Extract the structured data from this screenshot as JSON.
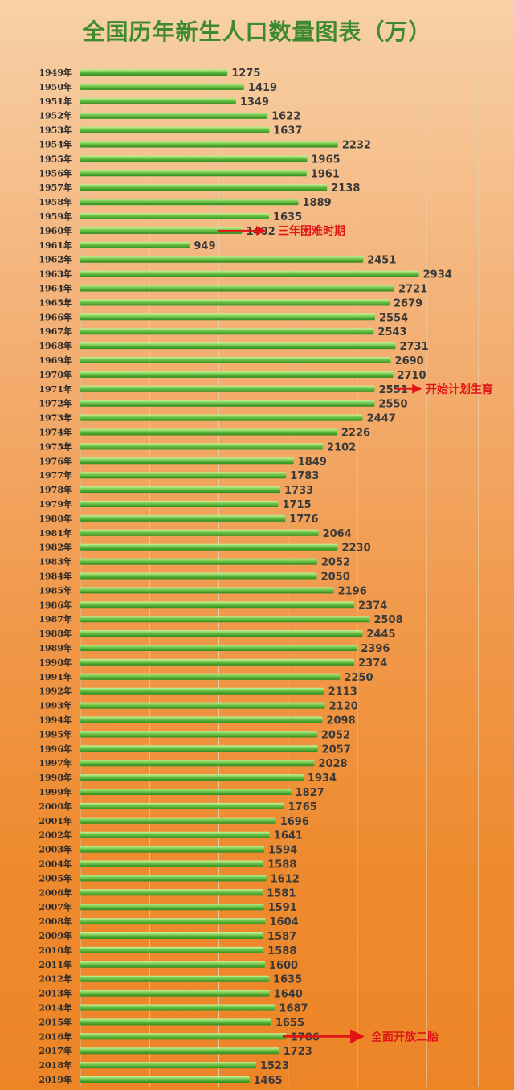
{
  "chart_data": {
    "type": "bar",
    "orientation": "horizontal",
    "title": "全国历年新生人口数量图表（万）",
    "categories": [
      "1949年",
      "1950年",
      "1951年",
      "1952年",
      "1953年",
      "1954年",
      "1955年",
      "1956年",
      "1957年",
      "1958年",
      "1959年",
      "1960年",
      "1961年",
      "1962年",
      "1963年",
      "1964年",
      "1965年",
      "1966年",
      "1967年",
      "1968年",
      "1969年",
      "1970年",
      "1971年",
      "1972年",
      "1973年",
      "1974年",
      "1975年",
      "1976年",
      "1977年",
      "1978年",
      "1979年",
      "1980年",
      "1981年",
      "1982年",
      "1983年",
      "1984年",
      "1985年",
      "1986年",
      "1987年",
      "1988年",
      "1989年",
      "1990年",
      "1991年",
      "1992年",
      "1993年",
      "1994年",
      "1995年",
      "1996年",
      "1997年",
      "1998年",
      "1999年",
      "2000年",
      "2001年",
      "2002年",
      "2003年",
      "2004年",
      "2005年",
      "2006年",
      "2007年",
      "2008年",
      "2009年",
      "2010年",
      "2011年",
      "2012年",
      "2013年",
      "2014年",
      "2015年",
      "2016年",
      "2017年",
      "2018年",
      "2019年"
    ],
    "values": [
      1275,
      1419,
      1349,
      1622,
      1637,
      2232,
      1965,
      1961,
      2138,
      1889,
      1635,
      1402,
      949,
      2451,
      2934,
      2721,
      2679,
      2554,
      2543,
      2731,
      2690,
      2710,
      2551,
      2550,
      2447,
      2226,
      2102,
      1849,
      1783,
      1733,
      1715,
      1776,
      2064,
      2230,
      2052,
      2050,
      2196,
      2374,
      2508,
      2445,
      2396,
      2374,
      2250,
      2113,
      2120,
      2098,
      2052,
      2057,
      2028,
      1934,
      1827,
      1765,
      1696,
      1641,
      1594,
      1588,
      1612,
      1581,
      1591,
      1604,
      1587,
      1588,
      1600,
      1635,
      1640,
      1687,
      1655,
      1786,
      1723,
      1523,
      1465
    ],
    "annotations": [
      {
        "category": "1960年",
        "text": "三年困难时期"
      },
      {
        "category": "1971年",
        "text": "开始计划生育"
      },
      {
        "category": "2016年",
        "text": "全面开放二胎"
      }
    ],
    "colors": {
      "bar": "#3a9a26",
      "bar_light": "#b7ea86",
      "annotation": "#e01515"
    }
  }
}
